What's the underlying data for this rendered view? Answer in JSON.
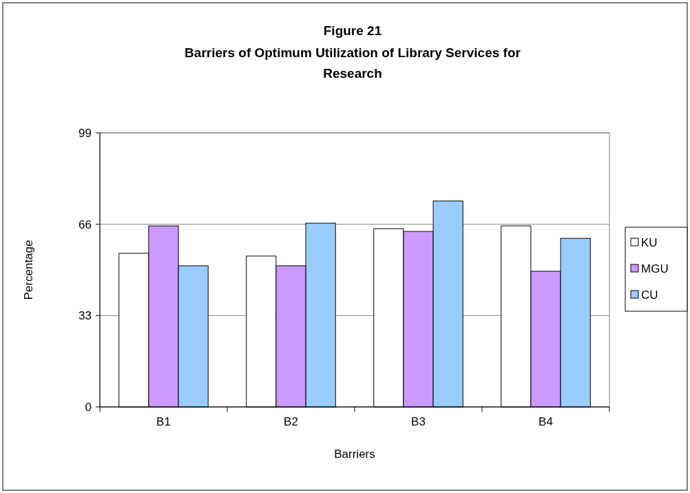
{
  "chart_data": {
    "type": "bar",
    "title": "Figure 21",
    "subtitle": "Barriers of Optimum Utilization of Library Services for Research",
    "xlabel": "Barriers",
    "ylabel": "Percentage",
    "categories": [
      "B1",
      "B2",
      "B3",
      "B4"
    ],
    "series": [
      {
        "name": "KU",
        "color": "#ffffff",
        "values": [
          55.5,
          54.5,
          64.4,
          65.4
        ]
      },
      {
        "name": "MGU",
        "color": "#cc99ff",
        "values": [
          65.4,
          51,
          63.4,
          49
        ]
      },
      {
        "name": "CU",
        "color": "#99ccff",
        "values": [
          51,
          66.4,
          74.4,
          60.9
        ]
      }
    ],
    "ylim": [
      0,
      99
    ],
    "yticks": [
      0,
      33,
      66,
      99
    ],
    "grid": "y",
    "legend": "right"
  }
}
